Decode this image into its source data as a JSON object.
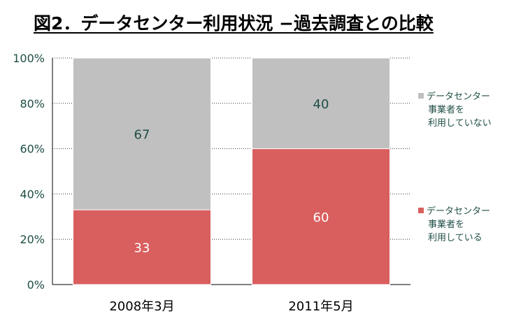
{
  "title": "図2．データセンター利用状況 −過去調査との比較",
  "chart_data": {
    "type": "bar",
    "stacked": true,
    "percent": true,
    "categories": [
      "2008年3月",
      "2011年5月"
    ],
    "series": [
      {
        "name": "データセンター事業者を利用している",
        "legend_lines": [
          "データセンター",
          "事業者を",
          "利用している"
        ],
        "values": [
          33,
          60
        ],
        "color": "#d95f5f",
        "label_color": "#ffffff"
      },
      {
        "name": "データセンター事業者を利用していない",
        "legend_lines": [
          "データセンター",
          "事業者を",
          "利用していない"
        ],
        "values": [
          67,
          40
        ],
        "color": "#c0c0c0",
        "label_color": "#1f4e46"
      }
    ],
    "y_ticks": [
      "0%",
      "20%",
      "40%",
      "60%",
      "80%",
      "100%"
    ],
    "ylim": [
      0,
      100
    ],
    "grid": "dotted horizontal",
    "legend_position": "right"
  }
}
